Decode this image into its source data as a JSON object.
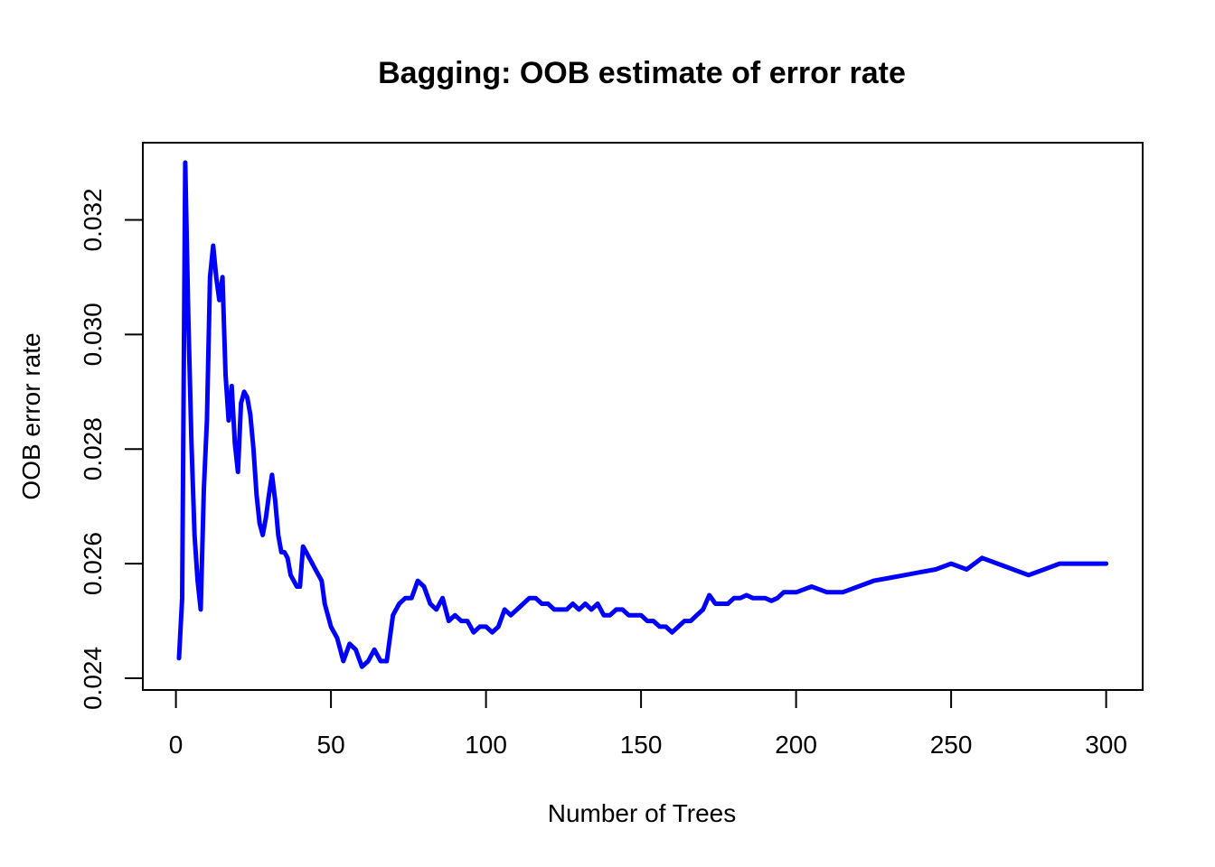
{
  "chart_data": {
    "type": "line",
    "title": "Bagging: OOB estimate of error rate",
    "xlabel": "Number of Trees",
    "ylabel": "OOB error rate",
    "xlim": [
      0,
      300
    ],
    "ylim": [
      0.024,
      0.033
    ],
    "xticks": [
      0,
      50,
      100,
      150,
      200,
      250,
      300
    ],
    "xtick_labels": [
      "0",
      "50",
      "100",
      "150",
      "200",
      "250",
      "300"
    ],
    "yticks": [
      0.024,
      0.026,
      0.028,
      0.03,
      0.032
    ],
    "ytick_labels": [
      "0.024",
      "0.026",
      "0.028",
      "0.030",
      "0.032"
    ],
    "grid": false,
    "series": [
      {
        "color": "#0000ff",
        "x": [
          1,
          2,
          3,
          4,
          5,
          6,
          7,
          8,
          9,
          10,
          11,
          12,
          13,
          14,
          15,
          16,
          17,
          18,
          19,
          20,
          21,
          22,
          23,
          24,
          25,
          26,
          27,
          28,
          29,
          30,
          31,
          32,
          33,
          34,
          35,
          36,
          37,
          38,
          39,
          40,
          41,
          42,
          43,
          44,
          45,
          46,
          47,
          48,
          50,
          52,
          54,
          56,
          58,
          60,
          62,
          64,
          66,
          68,
          70,
          72,
          74,
          76,
          78,
          80,
          82,
          84,
          86,
          88,
          90,
          92,
          94,
          96,
          98,
          100,
          102,
          104,
          106,
          108,
          110,
          112,
          114,
          116,
          118,
          120,
          122,
          124,
          126,
          128,
          130,
          132,
          134,
          136,
          138,
          140,
          142,
          144,
          146,
          148,
          150,
          152,
          154,
          156,
          158,
          160,
          162,
          164,
          166,
          168,
          170,
          172,
          174,
          176,
          178,
          180,
          182,
          184,
          186,
          188,
          190,
          192,
          194,
          196,
          198,
          200,
          205,
          210,
          215,
          220,
          225,
          230,
          235,
          240,
          245,
          250,
          255,
          260,
          265,
          270,
          275,
          280,
          285,
          290,
          295,
          300
        ],
        "y": [
          0.02435,
          0.0254,
          0.033,
          0.0303,
          0.0281,
          0.0265,
          0.0257,
          0.0252,
          0.0273,
          0.0285,
          0.031,
          0.03155,
          0.031,
          0.0306,
          0.031,
          0.0293,
          0.0285,
          0.0291,
          0.0281,
          0.0276,
          0.0288,
          0.029,
          0.0289,
          0.0286,
          0.028,
          0.0272,
          0.0267,
          0.0265,
          0.0268,
          0.0272,
          0.02755,
          0.0271,
          0.0265,
          0.0262,
          0.0262,
          0.0261,
          0.0258,
          0.0257,
          0.0256,
          0.0256,
          0.0263,
          0.0262,
          0.0261,
          0.026,
          0.0259,
          0.0258,
          0.0257,
          0.0253,
          0.0249,
          0.0247,
          0.0243,
          0.0246,
          0.0245,
          0.0242,
          0.0243,
          0.0245,
          0.0243,
          0.0243,
          0.0251,
          0.0253,
          0.0254,
          0.0254,
          0.0257,
          0.0256,
          0.0253,
          0.0252,
          0.0254,
          0.025,
          0.0251,
          0.025,
          0.025,
          0.0248,
          0.0249,
          0.0249,
          0.0248,
          0.0249,
          0.0252,
          0.0251,
          0.0252,
          0.0253,
          0.0254,
          0.0254,
          0.0253,
          0.0253,
          0.0252,
          0.0252,
          0.0252,
          0.0253,
          0.0252,
          0.0253,
          0.0252,
          0.0253,
          0.0251,
          0.0251,
          0.0252,
          0.0252,
          0.0251,
          0.0251,
          0.0251,
          0.025,
          0.025,
          0.0249,
          0.0249,
          0.0248,
          0.0249,
          0.025,
          0.025,
          0.0251,
          0.0252,
          0.02545,
          0.0253,
          0.0253,
          0.0253,
          0.0254,
          0.0254,
          0.02545,
          0.0254,
          0.0254,
          0.0254,
          0.02535,
          0.0254,
          0.0255,
          0.0255,
          0.0255,
          0.0256,
          0.0255,
          0.0255,
          0.0256,
          0.0257,
          0.02575,
          0.0258,
          0.02585,
          0.0259,
          0.026,
          0.0259,
          0.0261,
          0.026,
          0.0259,
          0.0258,
          0.0259,
          0.026,
          0.026,
          0.026,
          0.026
        ]
      }
    ]
  }
}
